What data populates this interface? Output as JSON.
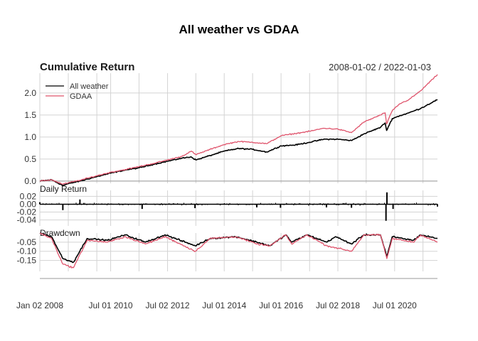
{
  "chart": {
    "title": "All weather vs GDAA",
    "date_range": "2008-01-02 / 2022-01-03",
    "x_ticks": [
      "Jan 02 2008",
      "Jul 01 2010",
      "Jul 02 2012",
      "Jul 01 2014",
      "Jul 01 2016",
      "Jul 02 2018",
      "Jul 01 2020"
    ],
    "legend": [
      {
        "label": "All weather",
        "color": "#000000"
      },
      {
        "label": "GDAA",
        "color": "#DF536B"
      }
    ]
  },
  "chart_data": [
    {
      "type": "line",
      "title": "Cumulative Return",
      "x_range": [
        "2008-01-02",
        "2022-01-03"
      ],
      "ylim": [
        -0.05,
        2.45
      ],
      "y_ticks": [
        0.0,
        0.5,
        1.0,
        1.5,
        2.0
      ],
      "y_tick_labels": [
        "0.0",
        "0.5",
        "1.0",
        "1.5",
        "2.0"
      ],
      "grid": true,
      "legend_position": "top-left",
      "x": [
        "2008-01-02",
        "2008-06-01",
        "2008-10-24",
        "2009-01-01",
        "2009-06-01",
        "2010-01-01",
        "2010-07-01",
        "2011-01-01",
        "2011-07-01",
        "2012-01-01",
        "2012-07-02",
        "2013-01-01",
        "2013-05-01",
        "2013-07-01",
        "2014-01-01",
        "2014-07-01",
        "2015-01-01",
        "2015-07-01",
        "2016-01-01",
        "2016-07-01",
        "2017-01-01",
        "2017-07-01",
        "2018-01-01",
        "2018-07-02",
        "2018-12-24",
        "2019-06-01",
        "2020-01-01",
        "2020-03-01",
        "2020-03-20",
        "2020-06-01",
        "2020-09-01",
        "2021-01-01",
        "2021-06-01",
        "2022-01-03"
      ],
      "series": [
        {
          "name": "All weather",
          "color": "#000000",
          "values": [
            0.0,
            0.03,
            -0.1,
            -0.06,
            0.0,
            0.1,
            0.18,
            0.25,
            0.3,
            0.38,
            0.45,
            0.52,
            0.55,
            0.48,
            0.58,
            0.68,
            0.74,
            0.72,
            0.66,
            0.8,
            0.82,
            0.88,
            0.95,
            0.95,
            0.92,
            1.07,
            1.22,
            1.32,
            1.15,
            1.42,
            1.48,
            1.55,
            1.65,
            1.85
          ]
        },
        {
          "name": "GDAA",
          "color": "#DF536B",
          "values": [
            0.0,
            0.03,
            -0.07,
            -0.04,
            0.02,
            0.12,
            0.2,
            0.26,
            0.33,
            0.4,
            0.48,
            0.56,
            0.68,
            0.6,
            0.72,
            0.83,
            0.9,
            0.88,
            0.85,
            1.03,
            1.08,
            1.13,
            1.2,
            1.18,
            1.1,
            1.34,
            1.5,
            1.55,
            1.3,
            1.6,
            1.75,
            1.85,
            2.05,
            2.42
          ]
        }
      ]
    },
    {
      "type": "bar",
      "title": "Daily Return",
      "ylim": [
        -0.055,
        0.035
      ],
      "y_ticks": [
        -0.04,
        -0.02,
        0.0,
        0.02
      ],
      "y_tick_labels": [
        "-0.04",
        "-0.02",
        "0.00",
        "0.02"
      ],
      "grid": true,
      "x": [
        "2008-01-02",
        "2008-10-24",
        "2009-06-01",
        "2011-08-10",
        "2013-06-20",
        "2015-08-24",
        "2016-06-24",
        "2018-02-05",
        "2018-12-24",
        "2020-03-12",
        "2020-03-24",
        "2020-06-11",
        "2022-01-03"
      ],
      "series": [
        {
          "name": "All weather",
          "color": "#000000",
          "values": [
            0.005,
            -0.015,
            0.012,
            -0.012,
            -0.01,
            -0.008,
            -0.009,
            -0.008,
            -0.009,
            -0.042,
            0.03,
            -0.012,
            -0.006
          ]
        }
      ]
    },
    {
      "type": "line",
      "title": "Drawdown",
      "ylim": [
        -0.21,
        0.0
      ],
      "y_ticks": [
        -0.05,
        -0.1,
        -0.15
      ],
      "y_tick_labels": [
        "-0.05",
        "-0.10",
        "-0.15"
      ],
      "grid": true,
      "x": [
        "2008-01-02",
        "2008-06-01",
        "2008-10-24",
        "2009-03-09",
        "2009-09-01",
        "2010-05-25",
        "2011-01-01",
        "2011-09-22",
        "2012-06-01",
        "2013-06-24",
        "2013-12-31",
        "2014-12-01",
        "2015-08-25",
        "2016-02-11",
        "2016-09-01",
        "2016-11-14",
        "2017-06-01",
        "2018-02-08",
        "2018-06-01",
        "2018-12-24",
        "2019-06-01",
        "2020-01-01",
        "2020-03-23",
        "2020-06-01",
        "2021-02-26",
        "2021-06-01",
        "2022-01-03"
      ],
      "series": [
        {
          "name": "All weather",
          "color": "#000000",
          "values": [
            0.0,
            -0.02,
            -0.14,
            -0.16,
            -0.03,
            -0.04,
            -0.01,
            -0.05,
            -0.01,
            -0.07,
            -0.03,
            -0.02,
            -0.05,
            -0.07,
            -0.01,
            -0.05,
            -0.01,
            -0.05,
            -0.02,
            -0.06,
            -0.01,
            -0.01,
            -0.13,
            -0.02,
            -0.04,
            -0.01,
            -0.03
          ]
        },
        {
          "name": "GDAA",
          "color": "#DF536B",
          "values": [
            0.0,
            -0.03,
            -0.17,
            -0.19,
            -0.04,
            -0.05,
            -0.02,
            -0.06,
            -0.02,
            -0.1,
            -0.03,
            -0.02,
            -0.06,
            -0.07,
            -0.01,
            -0.06,
            -0.01,
            -0.07,
            -0.08,
            -0.1,
            -0.01,
            -0.01,
            -0.14,
            -0.03,
            -0.05,
            -0.01,
            -0.05
          ]
        }
      ]
    }
  ]
}
